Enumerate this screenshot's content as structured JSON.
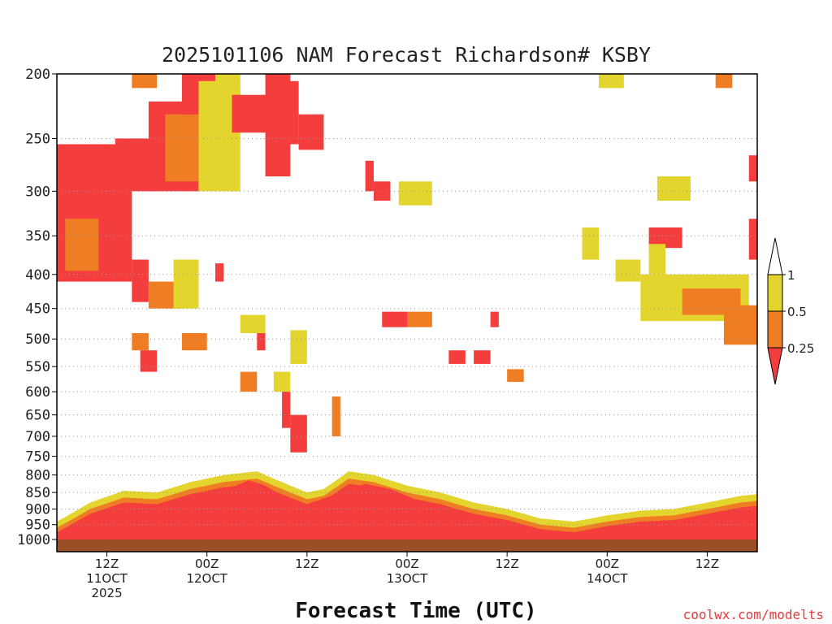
{
  "page": {
    "credit": "coolwx.com/modelts"
  },
  "chart_data": {
    "type": "heatmap",
    "title": "2025101106 NAM Forecast Richardson# KSBY",
    "xlabel": "Forecast Time (UTC)",
    "ylabel": "",
    "y_scale": "log-pressure (inverted)",
    "y_axis_pressure_levels": [
      200,
      250,
      300,
      350,
      400,
      450,
      500,
      550,
      600,
      650,
      700,
      750,
      800,
      850,
      900,
      950,
      1000
    ],
    "x_range_forecast_hours": [
      0,
      84
    ],
    "x_ticks": [
      {
        "hour": 6,
        "lines": [
          "12Z",
          "11OCT",
          "2025"
        ]
      },
      {
        "hour": 18,
        "lines": [
          "00Z",
          "12OCT"
        ]
      },
      {
        "hour": 30,
        "lines": [
          "12Z"
        ]
      },
      {
        "hour": 42,
        "lines": [
          "00Z",
          "13OCT"
        ]
      },
      {
        "hour": 54,
        "lines": [
          "12Z"
        ]
      },
      {
        "hour": 66,
        "lines": [
          "00Z",
          "14OCT"
        ]
      },
      {
        "hour": 78,
        "lines": [
          "12Z"
        ]
      }
    ],
    "grid": "dotted horizontal lines at pressure levels",
    "legend": {
      "placement": "right",
      "entries": [
        {
          "label": "1",
          "color": "#ffffff"
        },
        {
          "label": "0.5",
          "color": "#e4d42e"
        },
        {
          "label": "0.25",
          "color": "#ef7d24"
        },
        {
          "label": "",
          "color": "#f43e3e"
        }
      ],
      "boundaries": [
        "1",
        "0.5",
        "0.25"
      ]
    },
    "ground_color": "#9a4f27",
    "colors": {
      "low": "#f43e3e",
      "mid": "#ef7d24",
      "high": "#e4d42e"
    },
    "regions": [
      {
        "h0": 0,
        "h1": 9,
        "p0": 255,
        "p1": 410,
        "cls": "low"
      },
      {
        "h0": 1,
        "h1": 5,
        "p0": 330,
        "p1": 395,
        "cls": "mid"
      },
      {
        "h0": 7,
        "h1": 12,
        "p0": 250,
        "p1": 300,
        "cls": "low"
      },
      {
        "h0": 9,
        "h1": 12,
        "p0": 200,
        "p1": 210,
        "cls": "mid"
      },
      {
        "h0": 11,
        "h1": 17,
        "p0": 220,
        "p1": 300,
        "cls": "low"
      },
      {
        "h0": 13,
        "h1": 19,
        "p0": 230,
        "p1": 290,
        "cls": "mid"
      },
      {
        "h0": 15,
        "h1": 19,
        "p0": 200,
        "p1": 230,
        "cls": "low"
      },
      {
        "h0": 17,
        "h1": 22,
        "p0": 205,
        "p1": 300,
        "cls": "high"
      },
      {
        "h0": 19,
        "h1": 22,
        "p0": 200,
        "p1": 215,
        "cls": "high"
      },
      {
        "h0": 21,
        "h1": 26,
        "p0": 215,
        "p1": 245,
        "cls": "low"
      },
      {
        "h0": 25,
        "h1": 28,
        "p0": 200,
        "p1": 285,
        "cls": "low"
      },
      {
        "h0": 27,
        "h1": 29,
        "p0": 205,
        "p1": 255,
        "cls": "low"
      },
      {
        "h0": 29,
        "h1": 32,
        "p0": 230,
        "p1": 260,
        "cls": "low"
      },
      {
        "h0": 9,
        "h1": 11,
        "p0": 380,
        "p1": 440,
        "cls": "low"
      },
      {
        "h0": 11,
        "h1": 15,
        "p0": 410,
        "p1": 450,
        "cls": "mid"
      },
      {
        "h0": 14,
        "h1": 17,
        "p0": 380,
        "p1": 450,
        "cls": "high"
      },
      {
        "h0": 9,
        "h1": 11,
        "p0": 490,
        "p1": 520,
        "cls": "mid"
      },
      {
        "h0": 10,
        "h1": 12,
        "p0": 520,
        "p1": 560,
        "cls": "low"
      },
      {
        "h0": 15,
        "h1": 18,
        "p0": 490,
        "p1": 520,
        "cls": "mid"
      },
      {
        "h0": 19,
        "h1": 20,
        "p0": 385,
        "p1": 410,
        "cls": "low"
      },
      {
        "h0": 22,
        "h1": 25,
        "p0": 460,
        "p1": 490,
        "cls": "high"
      },
      {
        "h0": 24,
        "h1": 25,
        "p0": 490,
        "p1": 520,
        "cls": "low"
      },
      {
        "h0": 28,
        "h1": 30,
        "p0": 485,
        "p1": 545,
        "cls": "high"
      },
      {
        "h0": 22,
        "h1": 24,
        "p0": 560,
        "p1": 600,
        "cls": "mid"
      },
      {
        "h0": 26,
        "h1": 28,
        "p0": 560,
        "p1": 600,
        "cls": "high"
      },
      {
        "h0": 27,
        "h1": 28,
        "p0": 600,
        "p1": 680,
        "cls": "low"
      },
      {
        "h0": 28,
        "h1": 30,
        "p0": 650,
        "p1": 740,
        "cls": "low"
      },
      {
        "h0": 33,
        "h1": 34,
        "p0": 610,
        "p1": 700,
        "cls": "mid"
      },
      {
        "h0": 37,
        "h1": 38,
        "p0": 270,
        "p1": 300,
        "cls": "low"
      },
      {
        "h0": 38,
        "h1": 40,
        "p0": 290,
        "p1": 310,
        "cls": "low"
      },
      {
        "h0": 41,
        "h1": 45,
        "p0": 290,
        "p1": 315,
        "cls": "high"
      },
      {
        "h0": 39,
        "h1": 42,
        "p0": 455,
        "p1": 480,
        "cls": "low"
      },
      {
        "h0": 42,
        "h1": 45,
        "p0": 455,
        "p1": 480,
        "cls": "mid"
      },
      {
        "h0": 47,
        "h1": 49,
        "p0": 520,
        "p1": 545,
        "cls": "low"
      },
      {
        "h0": 50,
        "h1": 52,
        "p0": 520,
        "p1": 545,
        "cls": "low"
      },
      {
        "h0": 54,
        "h1": 56,
        "p0": 555,
        "p1": 580,
        "cls": "mid"
      },
      {
        "h0": 52,
        "h1": 53,
        "p0": 455,
        "p1": 480,
        "cls": "low"
      },
      {
        "h0": 67,
        "h1": 70,
        "p0": 380,
        "p1": 410,
        "cls": "high"
      },
      {
        "h0": 71,
        "h1": 75,
        "p0": 340,
        "p1": 365,
        "cls": "low"
      },
      {
        "h0": 70,
        "h1": 83,
        "p0": 400,
        "p1": 470,
        "cls": "high"
      },
      {
        "h0": 75,
        "h1": 82,
        "p0": 420,
        "p1": 460,
        "cls": "mid"
      },
      {
        "h0": 80,
        "h1": 84,
        "p0": 445,
        "p1": 510,
        "cls": "mid"
      },
      {
        "h0": 83,
        "h1": 84,
        "p0": 330,
        "p1": 380,
        "cls": "low"
      },
      {
        "h0": 83,
        "h1": 84,
        "p0": 265,
        "p1": 290,
        "cls": "low"
      },
      {
        "h0": 65,
        "h1": 68,
        "p0": 200,
        "p1": 210,
        "cls": "high"
      },
      {
        "h0": 79,
        "h1": 81,
        "p0": 200,
        "p1": 210,
        "cls": "mid"
      },
      {
        "h0": 72,
        "h1": 76,
        "p0": 285,
        "p1": 310,
        "cls": "high"
      },
      {
        "h0": 63,
        "h1": 65,
        "p0": 340,
        "p1": 380,
        "cls": "high"
      },
      {
        "h0": 71,
        "h1": 73,
        "p0": 360,
        "p1": 400,
        "cls": "high"
      }
    ],
    "boundary_layer": {
      "top_low": [
        [
          0,
          985
        ],
        [
          4,
          970
        ],
        [
          8,
          955
        ],
        [
          12,
          930
        ],
        [
          16,
          905
        ],
        [
          18,
          870
        ],
        [
          20,
          845
        ],
        [
          23,
          815
        ],
        [
          25,
          830
        ],
        [
          27,
          860
        ],
        [
          30,
          885
        ],
        [
          34,
          850
        ],
        [
          37,
          825
        ],
        [
          40,
          840
        ],
        [
          44,
          880
        ],
        [
          47,
          910
        ],
        [
          50,
          950
        ],
        [
          53,
          975
        ],
        [
          56,
          985
        ],
        [
          60,
          980
        ],
        [
          64,
          975
        ],
        [
          68,
          960
        ],
        [
          72,
          950
        ],
        [
          76,
          940
        ],
        [
          80,
          935
        ],
        [
          84,
          920
        ]
      ],
      "top_all": [
        [
          0,
          940
        ],
        [
          4,
          880
        ],
        [
          8,
          845
        ],
        [
          12,
          850
        ],
        [
          16,
          820
        ],
        [
          20,
          800
        ],
        [
          24,
          790
        ],
        [
          27,
          820
        ],
        [
          30,
          850
        ],
        [
          32,
          840
        ],
        [
          35,
          790
        ],
        [
          38,
          800
        ],
        [
          42,
          830
        ],
        [
          46,
          850
        ],
        [
          50,
          880
        ],
        [
          54,
          900
        ],
        [
          58,
          930
        ],
        [
          62,
          940
        ],
        [
          66,
          920
        ],
        [
          70,
          905
        ],
        [
          74,
          900
        ],
        [
          78,
          880
        ],
        [
          82,
          860
        ],
        [
          84,
          855
        ]
      ]
    }
  }
}
